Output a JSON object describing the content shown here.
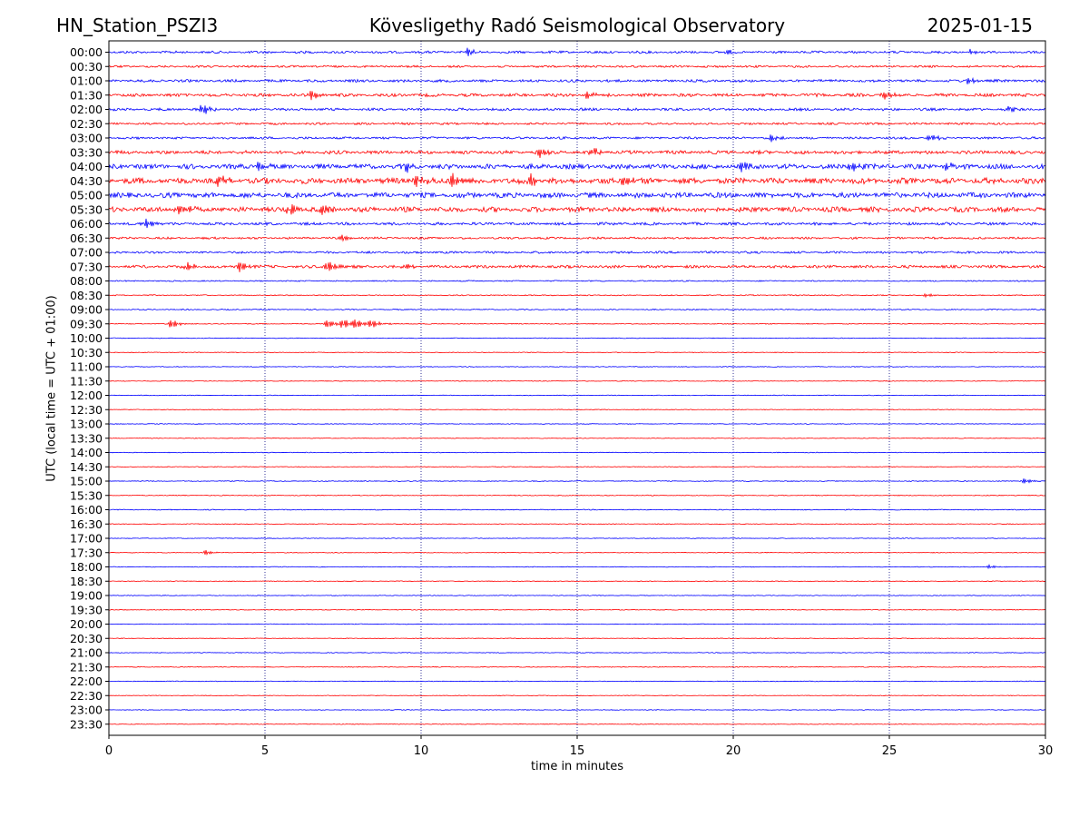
{
  "header": {
    "station": "HN_Station_PSZI3",
    "title": "Kövesligethy Radó Seismological Observatory",
    "date": "2025-01-15"
  },
  "colors": {
    "even_rows": "#0000ff",
    "odd_rows": "#ff0000",
    "grid": "#000080"
  },
  "chart_data": {
    "type": "line",
    "title": "Kövesligethy Radó Seismological Observatory",
    "xlabel": "time in minutes",
    "ylabel": "UTC (local time = UTC + 01:00)",
    "xlim": [
      0,
      30
    ],
    "xticks": [
      "0",
      "5",
      "10",
      "15",
      "20",
      "25",
      "30"
    ],
    "grid": "vertical dotted lines at 5, 10, 15, 20, 25 minutes",
    "rows": [
      "00:00",
      "00:30",
      "01:00",
      "01:30",
      "02:00",
      "02:30",
      "03:00",
      "03:30",
      "04:00",
      "04:30",
      "05:00",
      "05:30",
      "06:00",
      "06:30",
      "07:00",
      "07:30",
      "08:00",
      "08:30",
      "09:00",
      "09:30",
      "10:00",
      "10:30",
      "11:00",
      "11:30",
      "12:00",
      "12:30",
      "13:00",
      "13:30",
      "14:00",
      "14:30",
      "15:00",
      "15:30",
      "16:00",
      "16:30",
      "17:00",
      "17:30",
      "18:00",
      "18:30",
      "19:00",
      "19:30",
      "20:00",
      "20:30",
      "21:00",
      "21:30",
      "22:00",
      "22:30",
      "23:00",
      "23:30"
    ],
    "noise_amplitude": [
      1.4,
      1.2,
      1.5,
      1.8,
      1.5,
      1.2,
      1.3,
      2.0,
      2.8,
      3.3,
      3.0,
      2.9,
      1.6,
      1.2,
      1.3,
      1.6,
      0.7,
      0.6,
      0.6,
      0.5,
      0.4,
      0.4,
      0.4,
      0.4,
      0.4,
      0.4,
      0.4,
      0.4,
      0.4,
      0.4,
      0.5,
      0.5,
      0.5,
      0.4,
      0.4,
      0.4,
      0.4,
      0.4,
      0.4,
      0.4,
      0.4,
      0.4,
      0.4,
      0.4,
      0.4,
      0.4,
      0.4,
      0.4
    ],
    "events": [
      {
        "row": "00:00",
        "minute": 11.5,
        "amp": 4
      },
      {
        "row": "00:00",
        "minute": 19.8,
        "amp": 3
      },
      {
        "row": "00:00",
        "minute": 27.6,
        "amp": 3
      },
      {
        "row": "01:00",
        "minute": 27.5,
        "amp": 4
      },
      {
        "row": "01:30",
        "minute": 6.5,
        "amp": 5
      },
      {
        "row": "01:30",
        "minute": 15.3,
        "amp": 5
      },
      {
        "row": "01:30",
        "minute": 24.8,
        "amp": 5
      },
      {
        "row": "02:00",
        "minute": 3.0,
        "amp": 6
      },
      {
        "row": "02:00",
        "minute": 28.8,
        "amp": 3
      },
      {
        "row": "03:00",
        "minute": 21.2,
        "amp": 4
      },
      {
        "row": "03:00",
        "minute": 26.3,
        "amp": 4
      },
      {
        "row": "03:30",
        "minute": 13.8,
        "amp": 6
      },
      {
        "row": "03:30",
        "minute": 15.5,
        "amp": 5
      },
      {
        "row": "04:00",
        "minute": 4.8,
        "amp": 6
      },
      {
        "row": "04:00",
        "minute": 9.5,
        "amp": 6
      },
      {
        "row": "04:00",
        "minute": 20.2,
        "amp": 6
      },
      {
        "row": "04:00",
        "minute": 23.8,
        "amp": 6
      },
      {
        "row": "04:00",
        "minute": 26.8,
        "amp": 5
      },
      {
        "row": "04:30",
        "minute": 3.5,
        "amp": 6
      },
      {
        "row": "04:30",
        "minute": 9.8,
        "amp": 7
      },
      {
        "row": "04:30",
        "minute": 11.0,
        "amp": 8
      },
      {
        "row": "04:30",
        "minute": 13.5,
        "amp": 7
      },
      {
        "row": "04:30",
        "minute": 16.5,
        "amp": 6
      },
      {
        "row": "05:30",
        "minute": 2.2,
        "amp": 7
      },
      {
        "row": "05:30",
        "minute": 5.8,
        "amp": 7
      },
      {
        "row": "05:30",
        "minute": 6.8,
        "amp": 6
      },
      {
        "row": "06:00",
        "minute": 1.2,
        "amp": 5
      },
      {
        "row": "06:30",
        "minute": 7.5,
        "amp": 4
      },
      {
        "row": "07:30",
        "minute": 2.5,
        "amp": 5
      },
      {
        "row": "07:30",
        "minute": 4.2,
        "amp": 6
      },
      {
        "row": "07:30",
        "minute": 7.0,
        "amp": 7
      },
      {
        "row": "07:30",
        "minute": 9.5,
        "amp": 4
      },
      {
        "row": "08:30",
        "minute": 26.2,
        "amp": 2
      },
      {
        "row": "09:30",
        "minute": 2.0,
        "amp": 5
      },
      {
        "row": "09:30",
        "minute": 7.0,
        "amp": 5
      },
      {
        "row": "09:30",
        "minute": 7.5,
        "amp": 6
      },
      {
        "row": "09:30",
        "minute": 7.9,
        "amp": 6
      },
      {
        "row": "09:30",
        "minute": 8.4,
        "amp": 5
      },
      {
        "row": "15:00",
        "minute": 29.3,
        "amp": 3
      },
      {
        "row": "17:30",
        "minute": 3.1,
        "amp": 3
      },
      {
        "row": "18:00",
        "minute": 28.2,
        "amp": 2
      }
    ]
  }
}
